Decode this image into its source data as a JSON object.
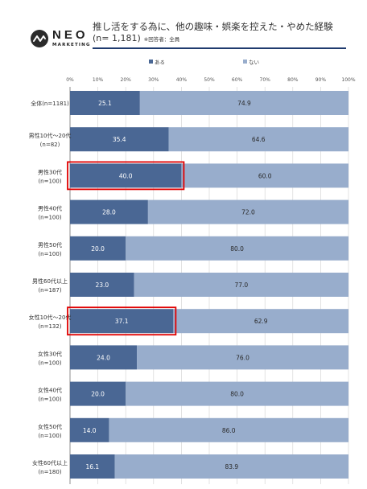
{
  "header": {
    "logo_text": "NEO",
    "logo_sub": "MARKETING",
    "title": "推し活をする為に、他の趣味・娯楽を控えた・やめた経験",
    "subtitle": "(n= 1,181)",
    "note": "※回答者：全員"
  },
  "colors": {
    "series_yes": "#4a6794",
    "series_no": "#98adcc",
    "highlight": "#e00000",
    "title_rule": "#1f3b6e"
  },
  "chart_data": {
    "type": "bar",
    "orientation": "horizontal",
    "stacked": true,
    "percent": true,
    "legend_placement": "top",
    "grid": true,
    "xlim": [
      0,
      100
    ],
    "x_ticks": [
      "0%",
      "10%",
      "20%",
      "30%",
      "40%",
      "50%",
      "60%",
      "70%",
      "80%",
      "90%",
      "100%"
    ],
    "categories": [
      [
        "全体(n=1181)"
      ],
      [
        "男性10代～20代",
        "(n=82)"
      ],
      [
        "男性30代",
        "(n=100)"
      ],
      [
        "男性40代",
        "(n=100)"
      ],
      [
        "男性50代",
        "(n=100)"
      ],
      [
        "男性60代以上",
        "(n=187)"
      ],
      [
        "女性10代～20代",
        "(n=132)"
      ],
      [
        "女性30代",
        "(n=100)"
      ],
      [
        "女性40代",
        "(n=100)"
      ],
      [
        "女性50代",
        "(n=100)"
      ],
      [
        "女性60代以上",
        "(n=180)"
      ]
    ],
    "series": [
      {
        "name": "ある",
        "values": [
          25.1,
          35.4,
          40.0,
          28.0,
          20.0,
          23.0,
          37.1,
          24.0,
          20.0,
          14.0,
          16.1
        ],
        "labels": [
          "25.1",
          "35.4",
          "40.0",
          "28.0",
          "20.0",
          "23.0",
          "37.1",
          "24.0",
          "20.0",
          "14.0",
          "16.1"
        ]
      },
      {
        "name": "ない",
        "values": [
          74.9,
          64.6,
          60.0,
          72.0,
          80.0,
          77.0,
          62.9,
          76.0,
          80.0,
          86.0,
          83.9
        ],
        "labels": [
          "74.9",
          "64.6",
          "60.0",
          "72.0",
          "80.0",
          "77.0",
          "62.9",
          "76.0",
          "80.0",
          "86.0",
          "83.9"
        ]
      }
    ],
    "highlighted": [
      2,
      6
    ]
  }
}
